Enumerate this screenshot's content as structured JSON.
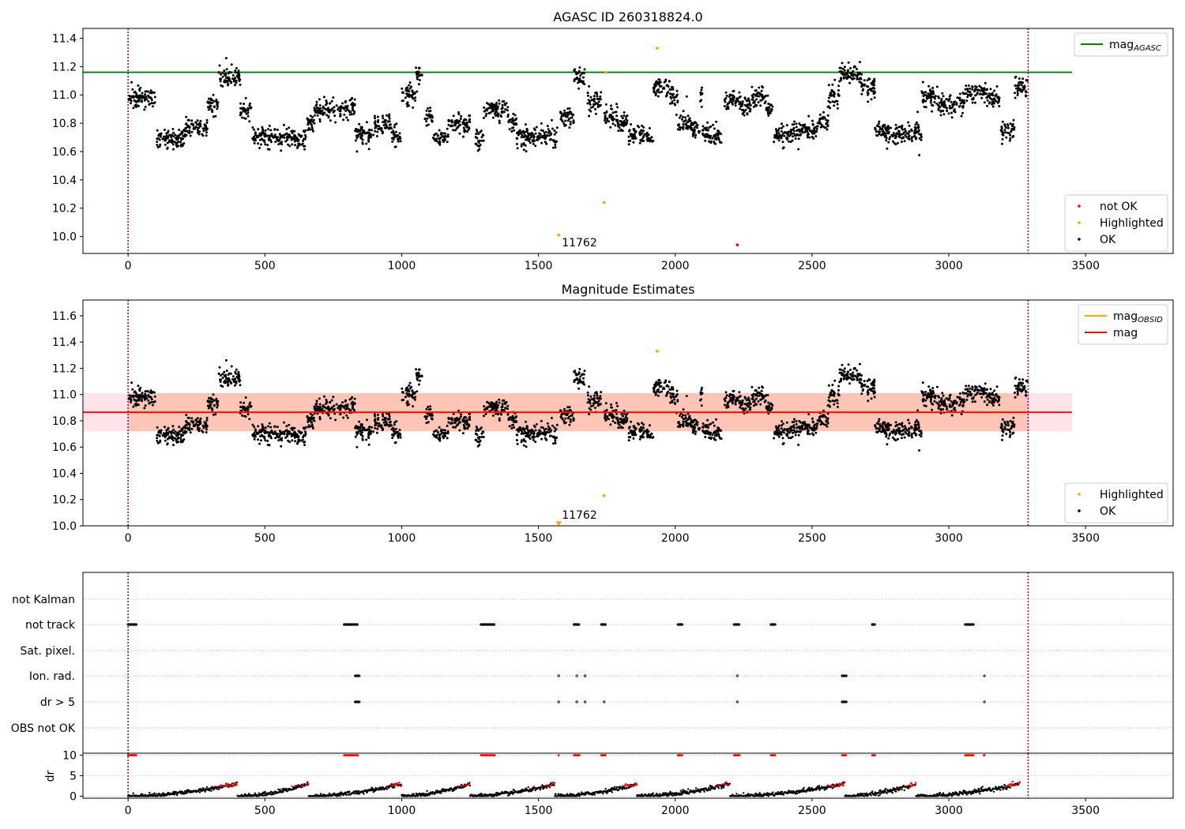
{
  "figure": {
    "title_top": "AGASC ID 260318824.0",
    "title_mid": "Magnitude Estimates"
  },
  "colors": {
    "ok": "#000000",
    "highlighted": "#ffa500",
    "not_ok": "#ff0000",
    "agasc_line": "#008000",
    "obsid_line": "#ffa500",
    "mag_line": "#ff0000",
    "band": "#ffc0cb",
    "band_inner": "#ffa07a",
    "obsid_boundary": "#800080",
    "grid": "#b0b0b0"
  },
  "chart_data": [
    {
      "id": "agasc",
      "type": "scatter",
      "title": "AGASC ID 260318824.0",
      "xlim": [
        -165,
        3820
      ],
      "ylim": [
        9.88,
        11.47
      ],
      "xticks": [
        0,
        500,
        1000,
        1500,
        2000,
        2500,
        3000,
        3500
      ],
      "yticks": [
        10.0,
        10.2,
        10.4,
        10.6,
        10.8,
        11.0,
        11.2,
        11.4
      ],
      "ytick_labels": [
        "10.0",
        "10.2",
        "10.4",
        "10.6",
        "10.8",
        "11.0",
        "11.2",
        "11.4"
      ],
      "hlines": [
        {
          "name": "mag_AGASC",
          "y": 11.16,
          "x": [
            -165,
            3450
          ],
          "color": "#008000"
        }
      ],
      "vlines": [
        0,
        3290
      ],
      "legends": [
        {
          "position": "top-right",
          "entries": [
            {
              "label": "mag",
              "sub": "AGASC",
              "kind": "line",
              "color": "#008000"
            }
          ]
        },
        {
          "position": "bottom-right",
          "entries": [
            {
              "label": "not OK",
              "kind": "dot",
              "color": "#ff0000"
            },
            {
              "label": "Highlighted",
              "kind": "dot",
              "color": "#ffa500"
            },
            {
              "label": "OK",
              "kind": "dot",
              "color": "#000000"
            }
          ]
        }
      ],
      "highlighted_points": [
        [
          1574,
          10.01
        ],
        [
          1740,
          10.24
        ],
        [
          1934,
          11.33
        ],
        [
          1746,
          11.16
        ]
      ],
      "not_ok_points": [
        [
          2227,
          9.94
        ]
      ],
      "annotations": [
        {
          "text": "11762",
          "x": 1574,
          "y": 9.94
        }
      ]
    },
    {
      "id": "estimates",
      "type": "scatter",
      "title": "Magnitude Estimates",
      "xlim": [
        -165,
        3820
      ],
      "ylim": [
        10.0,
        11.72
      ],
      "xticks": [
        0,
        500,
        1000,
        1500,
        2000,
        2500,
        3000,
        3500
      ],
      "yticks": [
        10.0,
        10.2,
        10.4,
        10.6,
        10.8,
        11.0,
        11.2,
        11.4,
        11.6
      ],
      "ytick_labels": [
        "10.0",
        "10.2",
        "10.4",
        "10.6",
        "10.8",
        "11.0",
        "11.2",
        "11.4",
        "11.6"
      ],
      "band": {
        "y": [
          10.72,
          11.01
        ],
        "x": [
          -165,
          3450
        ]
      },
      "hlines": [
        {
          "name": "mag",
          "y": 10.865,
          "x": [
            -165,
            3450
          ],
          "color": "#ff0000"
        }
      ],
      "obsid_segment": {
        "y": 10.865,
        "x": [
          0,
          3290
        ]
      },
      "vlines": [
        0,
        3290
      ],
      "legends": [
        {
          "position": "top-right",
          "entries": [
            {
              "label": "mag",
              "sub": "OBSID",
              "kind": "line",
              "color": "#ffa500"
            },
            {
              "label": "mag",
              "kind": "line",
              "color": "#ff0000"
            }
          ]
        },
        {
          "position": "bottom-right",
          "entries": [
            {
              "label": "Highlighted",
              "kind": "dot",
              "color": "#ffa500"
            },
            {
              "label": "OK",
              "kind": "dot",
              "color": "#000000"
            }
          ]
        }
      ],
      "highlighted_points": [
        [
          1740,
          10.23
        ],
        [
          1934,
          11.33
        ],
        [
          1574,
          10.015
        ]
      ],
      "annotations": [
        {
          "text": "11762",
          "x": 1574,
          "y": 10.03
        }
      ]
    },
    {
      "id": "flags",
      "type": "scatter",
      "xlim": [
        -165,
        3820
      ],
      "flag_labels": [
        "not Kalman",
        "not track",
        "Sat. pixel.",
        "Ion. rad.",
        "dr > 5",
        "OBS not OK"
      ],
      "flag_events": {
        "not track": [
          [
            0,
            30
          ],
          [
            790,
            840
          ],
          [
            1290,
            1340
          ],
          [
            1630,
            1650
          ],
          [
            1730,
            1745
          ],
          [
            2010,
            2025
          ],
          [
            2215,
            2235
          ],
          [
            2350,
            2365
          ],
          [
            2720,
            2730
          ],
          [
            3060,
            3090
          ]
        ],
        "Ion. rad.": [
          [
            830,
            845
          ],
          [
            1574,
            1576
          ],
          [
            1640,
            1642
          ],
          [
            1670,
            1672
          ],
          [
            2227,
            2229
          ],
          [
            2610,
            2625
          ],
          [
            3130,
            3132
          ]
        ],
        "dr > 5": [
          [
            830,
            845
          ],
          [
            1574,
            1576
          ],
          [
            1640,
            1642
          ],
          [
            1670,
            1672
          ],
          [
            1740,
            1742
          ],
          [
            2227,
            2229
          ],
          [
            2610,
            2625
          ],
          [
            3130,
            3132
          ]
        ]
      },
      "vlines": [
        0,
        3290
      ]
    },
    {
      "id": "dr",
      "type": "scatter",
      "ylabel": "dr",
      "xlim": [
        -165,
        3820
      ],
      "ylim": [
        -0.5,
        10.5
      ],
      "xticks": [
        0,
        500,
        1000,
        1500,
        2000,
        2500,
        3000,
        3500
      ],
      "yticks": [
        0,
        5,
        10
      ],
      "ytick_labels": [
        "0",
        "5",
        "10"
      ],
      "vlines": [
        0,
        3290
      ]
    }
  ]
}
